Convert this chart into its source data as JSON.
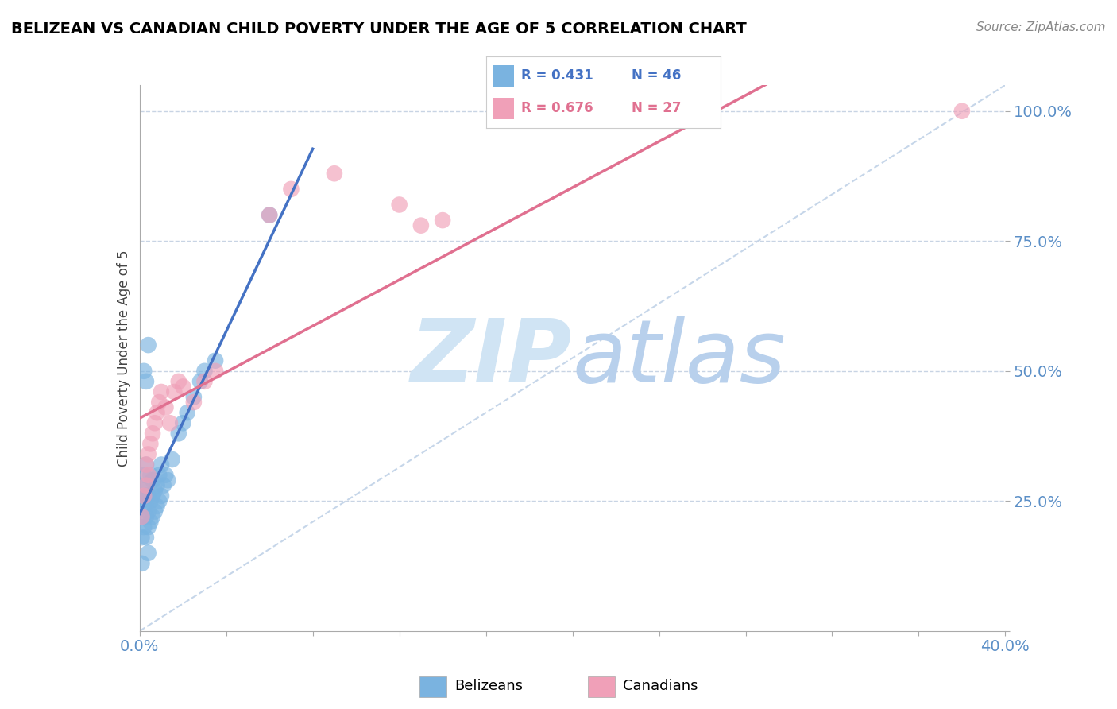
{
  "title": "BELIZEAN VS CANADIAN CHILD POVERTY UNDER THE AGE OF 5 CORRELATION CHART",
  "source": "Source: ZipAtlas.com",
  "ylabel": "Child Poverty Under the Age of 5",
  "xlim": [
    0.0,
    0.4
  ],
  "ylim": [
    0.0,
    1.05
  ],
  "belizean_R": 0.431,
  "belizean_N": 46,
  "canadian_R": 0.676,
  "canadian_N": 27,
  "belizean_color": "#7ab3e0",
  "canadian_color": "#f0a0b8",
  "belizean_line_color": "#4472c4",
  "canadian_line_color": "#e07090",
  "diag_line_color": "#b0c8e8",
  "watermark_color": "#d0e4f4",
  "bel_x": [
    0.001,
    0.001,
    0.002,
    0.002,
    0.002,
    0.002,
    0.003,
    0.003,
    0.003,
    0.003,
    0.003,
    0.004,
    0.004,
    0.004,
    0.004,
    0.005,
    0.005,
    0.005,
    0.006,
    0.006,
    0.006,
    0.007,
    0.007,
    0.007,
    0.008,
    0.008,
    0.009,
    0.009,
    0.01,
    0.01,
    0.011,
    0.012,
    0.013,
    0.014,
    0.015,
    0.016,
    0.018,
    0.02,
    0.022,
    0.025,
    0.002,
    0.003,
    0.004,
    0.005,
    0.06,
    0.001
  ],
  "bel_y": [
    0.22,
    0.25,
    0.2,
    0.24,
    0.27,
    0.3,
    0.18,
    0.22,
    0.26,
    0.28,
    0.32,
    0.2,
    0.23,
    0.26,
    0.29,
    0.21,
    0.25,
    0.3,
    0.22,
    0.26,
    0.29,
    0.23,
    0.27,
    0.31,
    0.24,
    0.28,
    0.25,
    0.3,
    0.26,
    0.32,
    0.28,
    0.3,
    0.29,
    0.32,
    0.33,
    0.35,
    0.38,
    0.4,
    0.42,
    0.45,
    0.5,
    0.48,
    0.52,
    0.55,
    0.8,
    0.13
  ],
  "can_x": [
    0.001,
    0.002,
    0.003,
    0.003,
    0.004,
    0.004,
    0.005,
    0.006,
    0.007,
    0.008,
    0.009,
    0.01,
    0.012,
    0.014,
    0.016,
    0.018,
    0.02,
    0.025,
    0.03,
    0.035,
    0.06,
    0.07,
    0.09,
    0.12,
    0.13,
    0.14,
    0.38
  ],
  "can_y": [
    0.22,
    0.26,
    0.28,
    0.32,
    0.3,
    0.34,
    0.36,
    0.38,
    0.4,
    0.42,
    0.44,
    0.46,
    0.43,
    0.4,
    0.46,
    0.48,
    0.47,
    0.44,
    0.48,
    0.5,
    0.8,
    0.85,
    0.88,
    0.82,
    0.78,
    0.79,
    1.0
  ]
}
